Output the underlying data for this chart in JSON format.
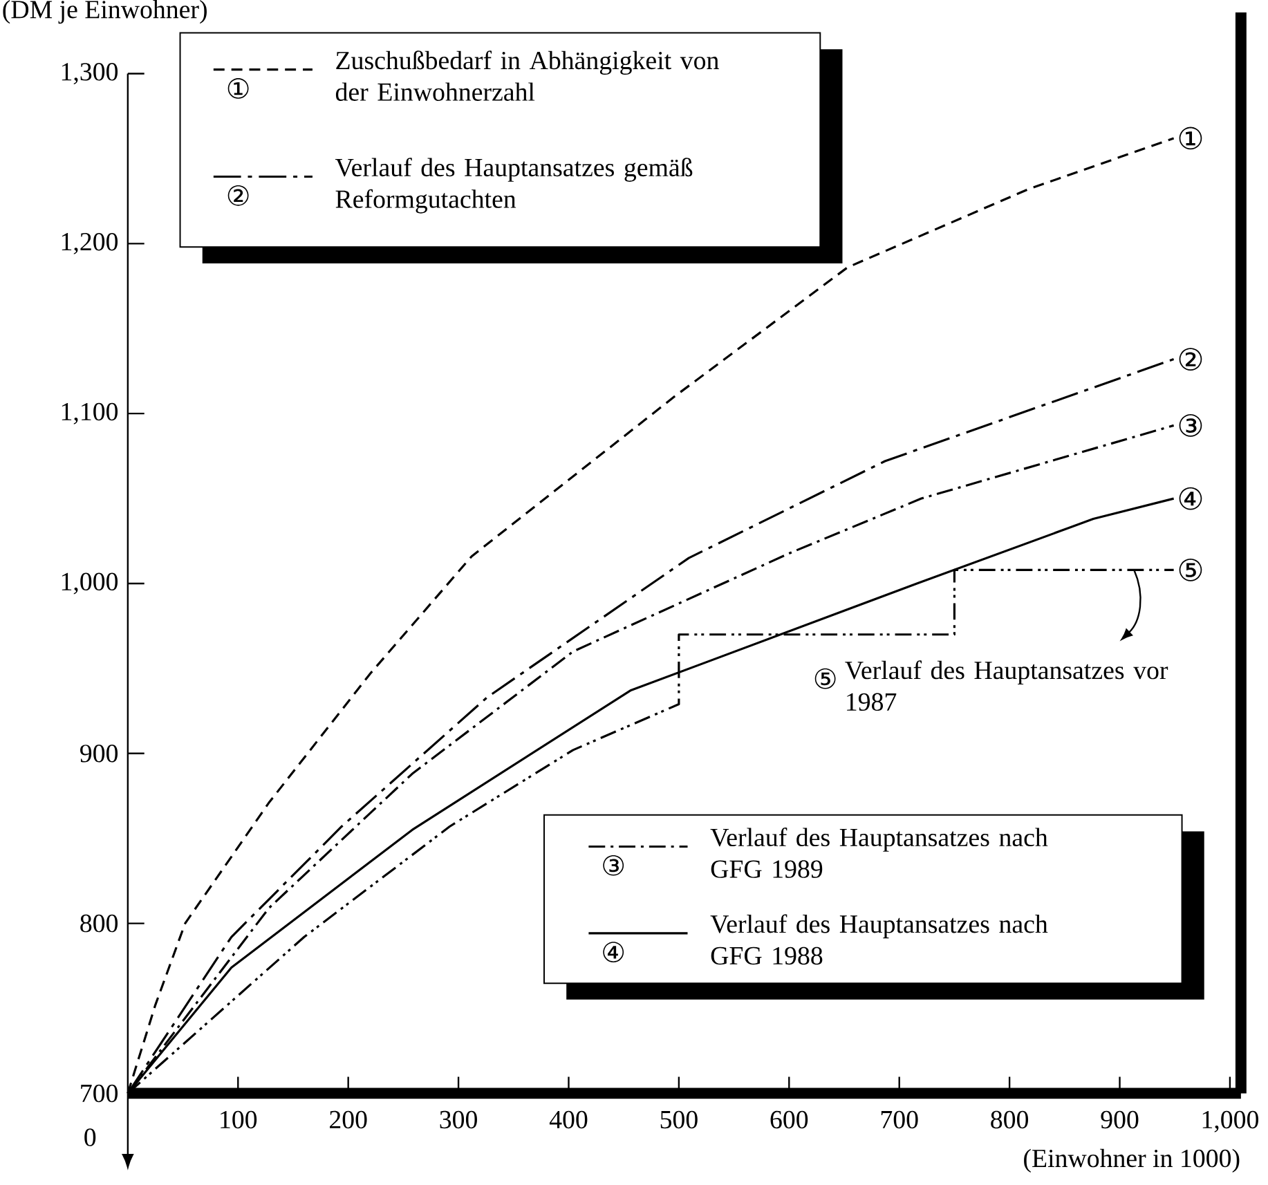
{
  "chart_data": {
    "type": "line",
    "ylabel": "(DM je Einwohner)",
    "xlabel": "(Einwohner in 1000)",
    "xlim": [
      0,
      1010
    ],
    "ylim": [
      700,
      1300
    ],
    "xticks": [
      100,
      200,
      300,
      400,
      500,
      600,
      700,
      800,
      900,
      {
        "value": 1000,
        "label": "1,000"
      }
    ],
    "yticks": [
      700,
      800,
      900,
      {
        "value": 1000,
        "label": "1,000"
      },
      {
        "value": 1100,
        "label": "1,100"
      },
      {
        "value": 1200,
        "label": "1,200"
      },
      {
        "value": 1300,
        "label": "1,300"
      }
    ],
    "grid": false,
    "legend": "top left",
    "series": [
      {
        "name": "Zuschußbedarf in Abhängigkeit von der Einwohnerzahl",
        "color": "#000000",
        "line_style": "dashed",
        "x": [
          0,
          25,
          52,
          128,
          220,
          312,
          496,
          653,
          817,
          949
        ],
        "values": [
          700,
          752,
          800,
          871,
          947,
          1016,
          1110,
          1186,
          1232,
          1262
        ]
      },
      {
        "name": "Verlauf des Hauptansatzes gemäß Reformgutachten",
        "color": "#000000",
        "line_style": "longdashdot",
        "x": [
          0,
          94,
          194,
          326,
          509,
          687,
          949
        ],
        "values": [
          700,
          792,
          857,
          933,
          1015,
          1072,
          1132
        ]
      },
      {
        "name": "Verlauf des Hauptansatzes nach GFG 1989",
        "color": "#000000",
        "line_style": "dashdot",
        "x": [
          0,
          128,
          258,
          404,
          601,
          720,
          949
        ],
        "values": [
          700,
          809,
          888,
          960,
          1018,
          1050,
          1093
        ]
      },
      {
        "name": "Verlauf des Hauptansatzes nach GFG 1988",
        "color": "#000000",
        "line_style": "solid",
        "x": [
          0,
          94,
          258,
          456,
          716,
          876,
          949
        ],
        "values": [
          700,
          774,
          855,
          937,
          1000,
          1038,
          1050
        ]
      },
      {
        "name": "Verlauf des Hauptansatzes vor 1987",
        "color": "#000000",
        "line_style": "dashdotdot",
        "x": [
          0,
          160,
          292,
          404,
          500,
          500,
          750,
          750,
          949
        ],
        "values": [
          700,
          792,
          857,
          902,
          929,
          970,
          970,
          1008,
          1008
        ]
      }
    ],
    "annotations": [
      "①",
      "②",
      "③",
      "④",
      "⑤",
      "0"
    ]
  }
}
